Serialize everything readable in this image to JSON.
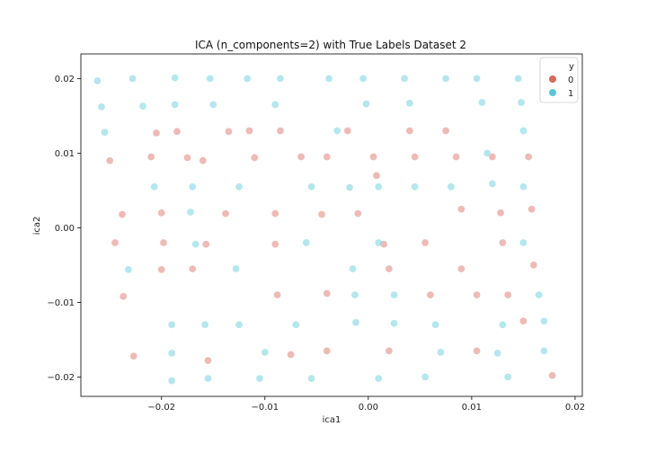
{
  "chart_data": {
    "type": "scatter",
    "title": "ICA (n_components=2) with True Labels Dataset 2",
    "xlabel": "ica1",
    "ylabel": "ica2",
    "xlim": [
      -0.0278,
      0.0207
    ],
    "ylim": [
      -0.0226,
      0.0233
    ],
    "x_ticks": [
      -0.02,
      -0.01,
      0.0,
      0.01,
      0.02
    ],
    "x_tick_labels": [
      "−0.02",
      "−0.01",
      "0.00",
      "0.01",
      "0.02"
    ],
    "y_ticks": [
      -0.02,
      -0.01,
      0.0,
      0.01,
      0.02
    ],
    "y_tick_labels": [
      "−0.02",
      "−0.01",
      "0.00",
      "0.01",
      "0.02"
    ],
    "grid": false,
    "legend": {
      "title": "y",
      "placement": "top-right",
      "entries": [
        "0",
        "1"
      ]
    },
    "colors": {
      "0": "#d9675b",
      "1": "#58c7d6",
      "mixed": "#9cb5b8"
    },
    "series": [
      {
        "name": "0",
        "points": [
          [
            -0.025,
            0.009
          ],
          [
            -0.0238,
            0.0018
          ],
          [
            -0.0245,
            -0.002
          ],
          [
            -0.0237,
            -0.0092
          ],
          [
            -0.0227,
            -0.0172
          ],
          [
            -0.0205,
            0.0127
          ],
          [
            -0.021,
            0.0095
          ],
          [
            -0.02,
            0.002
          ],
          [
            -0.0198,
            -0.002
          ],
          [
            -0.02,
            -0.0056
          ],
          [
            -0.0185,
            0.0129
          ],
          [
            -0.0175,
            0.0094
          ],
          [
            -0.017,
            -0.0055
          ],
          [
            -0.0155,
            -0.0178
          ],
          [
            -0.016,
            0.009
          ],
          [
            -0.0157,
            -0.0022
          ],
          [
            -0.0135,
            0.0129
          ],
          [
            -0.0138,
            0.0019
          ],
          [
            -0.0115,
            0.013
          ],
          [
            -0.011,
            0.0094
          ],
          [
            -0.0085,
            0.013
          ],
          [
            -0.009,
            0.0019
          ],
          [
            -0.009,
            -0.0022
          ],
          [
            -0.0088,
            -0.009
          ],
          [
            -0.0065,
            0.0095
          ],
          [
            -0.0075,
            -0.017
          ],
          [
            -0.004,
            0.0095
          ],
          [
            -0.0045,
            0.0018
          ],
          [
            -0.004,
            -0.0088
          ],
          [
            -0.004,
            -0.0165
          ],
          [
            -0.002,
            0.013
          ],
          [
            -0.001,
            0.0019
          ],
          [
            0.0005,
            0.0095
          ],
          [
            0.0008,
            0.007
          ],
          [
            0.0015,
            -0.0022
          ],
          [
            0.002,
            -0.0055
          ],
          [
            0.002,
            -0.0165
          ],
          [
            0.004,
            0.013
          ],
          [
            0.0045,
            0.0095
          ],
          [
            0.0055,
            -0.002
          ],
          [
            0.006,
            -0.009
          ],
          [
            0.0075,
            0.013
          ],
          [
            0.0085,
            0.0095
          ],
          [
            0.009,
            0.0025
          ],
          [
            0.009,
            -0.0055
          ],
          [
            0.0105,
            -0.009
          ],
          [
            0.0105,
            -0.0165
          ],
          [
            0.012,
            0.0095
          ],
          [
            0.0128,
            0.002
          ],
          [
            0.013,
            -0.002
          ],
          [
            0.0135,
            -0.009
          ],
          [
            0.0155,
            0.0095
          ],
          [
            0.0158,
            0.0025
          ],
          [
            0.016,
            -0.005
          ],
          [
            0.015,
            -0.0125
          ],
          [
            0.0178,
            -0.0198
          ]
        ]
      },
      {
        "name": "1",
        "points": [
          [
            -0.0262,
            0.0197
          ],
          [
            -0.0258,
            0.0162
          ],
          [
            -0.0255,
            0.0128
          ],
          [
            -0.0232,
            -0.0056
          ],
          [
            -0.0228,
            0.02
          ],
          [
            -0.0218,
            0.0163
          ],
          [
            -0.0207,
            0.0055
          ],
          [
            -0.019,
            -0.013
          ],
          [
            -0.019,
            -0.0168
          ],
          [
            -0.0187,
            0.0201
          ],
          [
            -0.0187,
            0.0165
          ],
          [
            -0.019,
            -0.0205
          ],
          [
            -0.0172,
            0.0021
          ],
          [
            -0.017,
            0.0055
          ],
          [
            -0.0167,
            -0.0022
          ],
          [
            -0.0158,
            -0.013
          ],
          [
            -0.0155,
            -0.0202
          ],
          [
            -0.0153,
            0.02
          ],
          [
            -0.015,
            0.0165
          ],
          [
            -0.0125,
            0.0055
          ],
          [
            -0.0125,
            -0.013
          ],
          [
            -0.0117,
            0.02
          ],
          [
            -0.0128,
            -0.0055
          ],
          [
            -0.0105,
            -0.0202
          ],
          [
            -0.0085,
            0.02
          ],
          [
            -0.009,
            0.0165
          ],
          [
            -0.01,
            -0.0167
          ],
          [
            -0.007,
            -0.013
          ],
          [
            -0.0055,
            0.0055
          ],
          [
            -0.006,
            -0.002
          ],
          [
            -0.0055,
            -0.0202
          ],
          [
            -0.0038,
            0.02
          ],
          [
            -0.003,
            0.013
          ],
          [
            -0.0018,
            0.0054
          ],
          [
            -0.0015,
            -0.0055
          ],
          [
            -0.0013,
            -0.009
          ],
          [
            -0.0012,
            -0.0127
          ],
          [
            -0.0005,
            0.02
          ],
          [
            -0.0002,
            0.0166
          ],
          [
            0.001,
            0.0055
          ],
          [
            0.001,
            -0.002
          ],
          [
            0.001,
            -0.0202
          ],
          [
            0.0025,
            -0.009
          ],
          [
            0.0025,
            -0.0128
          ],
          [
            0.0035,
            0.02
          ],
          [
            0.004,
            0.0167
          ],
          [
            0.0045,
            0.0055
          ],
          [
            0.0055,
            -0.02
          ],
          [
            0.0065,
            -0.013
          ],
          [
            0.007,
            -0.0167
          ],
          [
            0.0075,
            0.02
          ],
          [
            0.008,
            0.0055
          ],
          [
            0.0105,
            0.02
          ],
          [
            0.011,
            0.0168
          ],
          [
            0.0115,
            0.01
          ],
          [
            0.012,
            0.0059
          ],
          [
            0.0125,
            -0.0168
          ],
          [
            0.013,
            -0.013
          ],
          [
            0.0135,
            -0.02
          ],
          [
            0.0145,
            0.02
          ],
          [
            0.0148,
            0.0168
          ],
          [
            0.015,
            0.013
          ],
          [
            0.015,
            -0.002
          ],
          [
            0.015,
            0.0055
          ],
          [
            0.0165,
            -0.009
          ],
          [
            0.017,
            -0.0125
          ],
          [
            0.017,
            -0.0165
          ]
        ]
      }
    ]
  }
}
